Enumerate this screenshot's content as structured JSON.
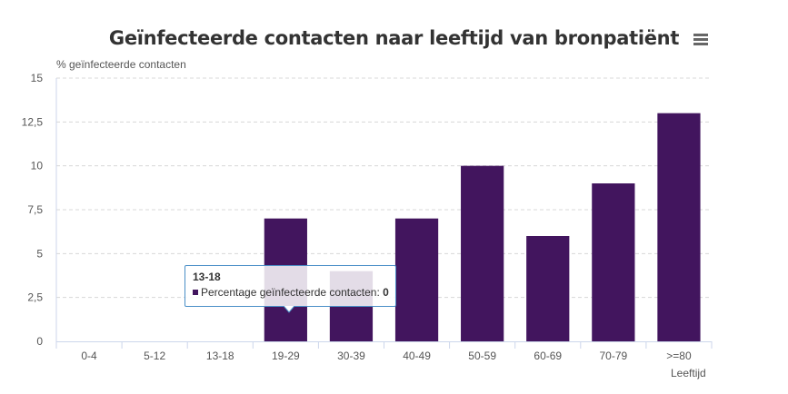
{
  "chart": {
    "title": "Geïnfecteerde contacten naar leeftijd van bronpatiënt",
    "ylabel": "% geïnfecteerde contacten",
    "xlabel": "Leeftijd"
  },
  "tooltip": {
    "category": "13-18",
    "series_label": "Percentage geïnfecteerde contacten",
    "value": "0"
  },
  "colors": {
    "bar": "#42155e",
    "grid": "#d8d8d8",
    "axis": "#ccd6eb",
    "tooltip_border": "#4a8fc7"
  },
  "icons": {
    "menu": "hamburger-menu-icon"
  },
  "chart_data": {
    "type": "bar",
    "title": "Geïnfecteerde contacten naar leeftijd van bronpatiënt",
    "xlabel": "Leeftijd",
    "ylabel": "% geïnfecteerde contacten",
    "categories": [
      "0-4",
      "5-12",
      "13-18",
      "19-29",
      "30-39",
      "40-49",
      "50-59",
      "60-69",
      "70-79",
      ">=80"
    ],
    "series": [
      {
        "name": "Percentage geïnfecteerde contacten",
        "values": [
          0,
          0,
          0,
          7,
          4,
          7,
          10,
          6,
          9,
          13
        ]
      }
    ],
    "ylim": [
      0,
      15
    ],
    "yticks": [
      "0",
      "2,5",
      "5",
      "7,5",
      "10",
      "12,5",
      "15"
    ],
    "grid": true,
    "legend": "none"
  }
}
